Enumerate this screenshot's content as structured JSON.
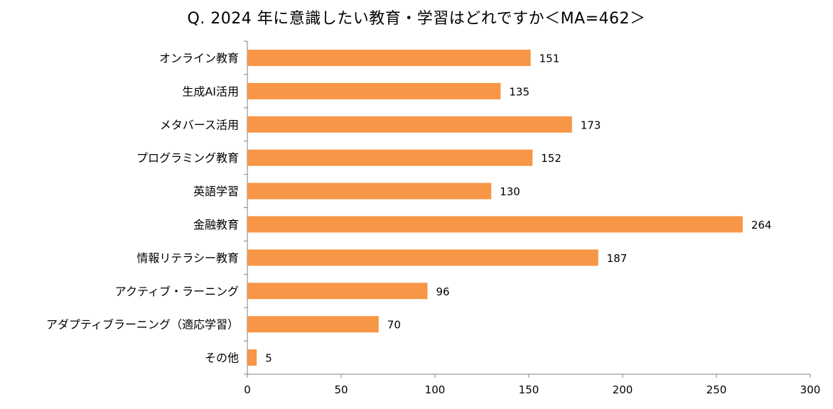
{
  "chart_data": {
    "type": "bar",
    "orientation": "horizontal",
    "title": "Q. 2024 年に意識したい教育・学習はどれですか＜MA=462＞",
    "xlabel": "",
    "ylabel": "",
    "categories": [
      "オンライン教育",
      "生成AI活用",
      "メタバース活用",
      "プログラミング教育",
      "英語学習",
      "金融教育",
      "情報リテラシー教育",
      "アクティブ・ラーニング",
      "アダプティブラーニング（適応学習）",
      "その他"
    ],
    "values": [
      151,
      135,
      173,
      152,
      130,
      264,
      187,
      96,
      70,
      5
    ],
    "xlim": [
      0,
      300
    ],
    "xticks": [
      0,
      50,
      100,
      150,
      200,
      250,
      300
    ],
    "grid": false,
    "legend": "none",
    "bar_color": "#F79646",
    "data_labels": true
  }
}
